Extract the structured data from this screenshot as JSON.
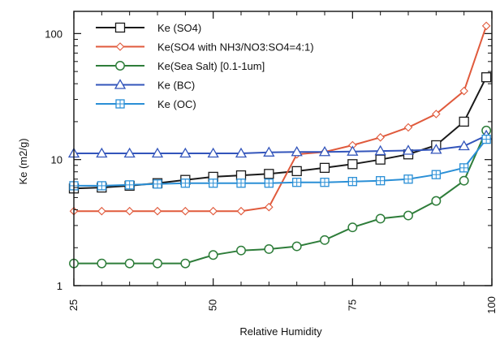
{
  "chart_data": {
    "type": "line",
    "xlabel": "Relative Humidity",
    "ylabel": "Ke (m2/g)",
    "xlim": [
      25,
      100
    ],
    "ylim": [
      1,
      150
    ],
    "yscale": "log",
    "x_ticks": [
      25,
      50,
      75,
      100
    ],
    "x_tick_labels": [
      "25",
      "50",
      "75",
      "100"
    ],
    "y_ticks": [
      1,
      10,
      100
    ],
    "y_tick_labels": [
      "1",
      "10",
      "100"
    ],
    "grid": false,
    "legend_position": "top-left",
    "x": [
      25,
      30,
      35,
      40,
      45,
      50,
      55,
      60,
      65,
      70,
      75,
      80,
      85,
      90,
      95,
      99
    ],
    "series": [
      {
        "name": "Ke (SO4)",
        "color": "#1a1a1a",
        "marker": "square",
        "values": [
          5.9,
          6.0,
          6.2,
          6.5,
          6.9,
          7.3,
          7.5,
          7.7,
          8.1,
          8.6,
          9.2,
          10.0,
          11.0,
          13.0,
          20.0,
          45.0
        ]
      },
      {
        "name": "Ke(SO4 with NH3/NO3:SO4=4:1)",
        "color": "#e05a3c",
        "marker": "diamond",
        "values": [
          3.9,
          3.9,
          3.9,
          3.9,
          3.9,
          3.9,
          3.9,
          4.2,
          11.0,
          11.5,
          13.0,
          15.0,
          18.0,
          23.0,
          35.0,
          115.0
        ]
      },
      {
        "name": "Ke(Sea Salt) [0.1-1um]",
        "color": "#2e7d3a",
        "marker": "circle",
        "values": [
          1.5,
          1.5,
          1.5,
          1.5,
          1.5,
          1.75,
          1.9,
          1.95,
          2.05,
          2.3,
          2.9,
          3.4,
          3.6,
          4.7,
          6.8,
          17.0
        ]
      },
      {
        "name": "Ke (BC)",
        "color": "#3355bb",
        "marker": "triangle",
        "values": [
          11.2,
          11.2,
          11.2,
          11.2,
          11.2,
          11.2,
          11.2,
          11.4,
          11.5,
          11.5,
          11.6,
          11.7,
          11.8,
          12.0,
          12.8,
          15.5
        ]
      },
      {
        "name": "Ke (OC)",
        "color": "#2a8fd6",
        "marker": "boxplus",
        "values": [
          6.2,
          6.2,
          6.3,
          6.4,
          6.5,
          6.5,
          6.5,
          6.5,
          6.6,
          6.6,
          6.7,
          6.8,
          7.0,
          7.6,
          8.6,
          14.5
        ]
      }
    ]
  }
}
